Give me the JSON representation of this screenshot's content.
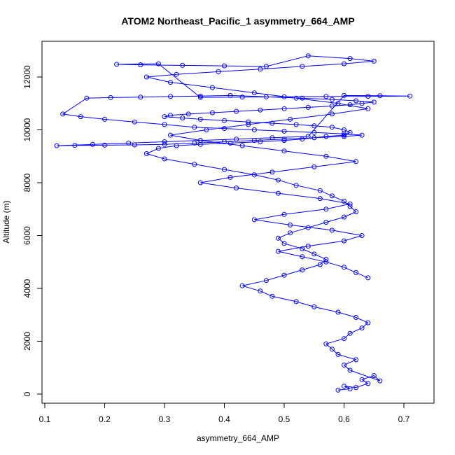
{
  "chart_data": {
    "type": "line",
    "title": "ATOM2 Northeast_Pacific_1 asymmetry_664_AMP",
    "xlabel": "asymmetry_664_AMP",
    "ylabel": "Altitude (m)",
    "xlim": [
      0.1,
      0.7
    ],
    "ylim": [
      0,
      12000
    ],
    "xticks": [
      "0.1",
      "0.2",
      "0.3",
      "0.4",
      "0.5",
      "0.6",
      "0.7"
    ],
    "yticks": [
      "0",
      "2000",
      "4000",
      "6000",
      "8000",
      "10000",
      "12000"
    ],
    "grid": false,
    "marker": "open-circle",
    "color": "#0000ff",
    "series": [
      {
        "x": [
          0.59,
          0.61,
          0.6,
          0.62,
          0.64,
          0.63,
          0.65,
          0.66,
          0.61,
          0.6,
          0.62,
          0.59,
          0.58,
          0.57,
          0.6,
          0.61,
          0.63,
          0.64,
          0.62,
          0.59,
          0.55,
          0.52,
          0.48,
          0.46,
          0.43,
          0.47,
          0.5,
          0.53,
          0.56,
          0.57,
          0.55,
          0.53,
          0.5,
          0.49,
          0.51,
          0.54,
          0.57,
          0.6,
          0.62,
          0.61,
          0.6,
          0.58,
          0.56,
          0.52,
          0.49,
          0.45,
          0.4,
          0.35,
          0.3,
          0.27,
          0.29,
          0.32,
          0.36,
          0.41,
          0.46,
          0.5,
          0.53,
          0.55,
          0.57,
          0.6,
          0.61,
          0.6,
          0.58,
          0.55,
          0.52,
          0.48,
          0.44,
          0.4,
          0.36,
          0.33,
          0.3,
          0.31,
          0.34,
          0.38,
          0.42,
          0.46,
          0.5,
          0.54,
          0.58,
          0.61,
          0.63,
          0.65,
          0.62,
          0.58,
          0.53,
          0.47,
          0.41,
          0.36,
          0.31,
          0.26,
          0.21,
          0.17,
          0.13,
          0.16,
          0.2,
          0.25,
          0.3,
          0.35,
          0.4,
          0.45,
          0.5,
          0.55,
          0.6,
          0.63,
          0.6,
          0.55,
          0.5,
          0.45,
          0.4,
          0.35,
          0.3,
          0.25,
          0.2,
          0.15,
          0.12,
          0.18,
          0.24,
          0.3,
          0.36,
          0.42,
          0.48,
          0.54,
          0.6,
          0.66,
          0.71,
          0.64,
          0.57,
          0.5,
          0.43,
          0.36,
          0.29,
          0.22,
          0.26,
          0.33,
          0.4,
          0.47,
          0.54,
          0.61,
          0.65,
          0.6,
          0.53,
          0.46,
          0.39,
          0.32,
          0.27,
          0.31,
          0.38,
          0.45,
          0.52,
          0.59,
          0.64,
          0.58,
          0.51,
          0.44,
          0.37,
          0.31,
          0.36,
          0.43,
          0.5,
          0.57,
          0.62,
          0.55,
          0.48,
          0.41,
          0.36,
          0.42,
          0.49,
          0.56,
          0.61,
          0.57,
          0.5,
          0.45,
          0.51,
          0.58,
          0.63,
          0.6,
          0.54,
          0.49,
          0.53,
          0.57,
          0.6,
          0.62,
          0.64
        ],
        "y": [
          150,
          200,
          300,
          250,
          400,
          550,
          700,
          500,
          900,
          1100,
          1300,
          1500,
          1700,
          1900,
          2100,
          2300,
          2500,
          2700,
          2900,
          3100,
          3300,
          3500,
          3700,
          3900,
          4100,
          4300,
          4500,
          4700,
          4900,
          5100,
          5300,
          5500,
          5700,
          5900,
          6100,
          6300,
          6500,
          6700,
          6900,
          7100,
          7300,
          7500,
          7700,
          7900,
          8100,
          8300,
          8500,
          8700,
          8900,
          9100,
          9300,
          9400,
          9450,
          9500,
          9550,
          9600,
          9650,
          9700,
          9750,
          9800,
          9900,
          10000,
          10100,
          10150,
          10200,
          10250,
          10300,
          10350,
          10400,
          10450,
          10500,
          10550,
          10600,
          10650,
          10700,
          10750,
          10800,
          10850,
          10900,
          10950,
          11000,
          11050,
          11100,
          11150,
          11200,
          11250,
          11300,
          11280,
          11260,
          11240,
          11220,
          11200,
          10600,
          10500,
          10400,
          10300,
          10200,
          10100,
          10050,
          10000,
          9950,
          9900,
          9850,
          9800,
          9750,
          9700,
          9650,
          9600,
          9550,
          9500,
          9450,
          9430,
          9420,
          9410,
          9400,
          9450,
          9500,
          9550,
          9600,
          9650,
          9700,
          9750,
          11300,
          11290,
          11280,
          11270,
          11260,
          11250,
          11240,
          11230,
          12500,
          12480,
          12460,
          12440,
          12420,
          12400,
          12800,
          12700,
          12600,
          12500,
          12400,
          12300,
          12200,
          12100,
          12000,
          11800,
          11600,
          11400,
          11200,
          11000,
          10800,
          10600,
          10400,
          10200,
          10000,
          9800,
          9600,
          9400,
          9200,
          9000,
          8800,
          8600,
          8400,
          8200,
          8000,
          7800,
          7600,
          7400,
          7200,
          7000,
          6800,
          6600,
          6400,
          6200,
          6000,
          5800,
          5600,
          5400,
          5200,
          5000,
          4800,
          4600,
          4400
        ]
      }
    ]
  }
}
